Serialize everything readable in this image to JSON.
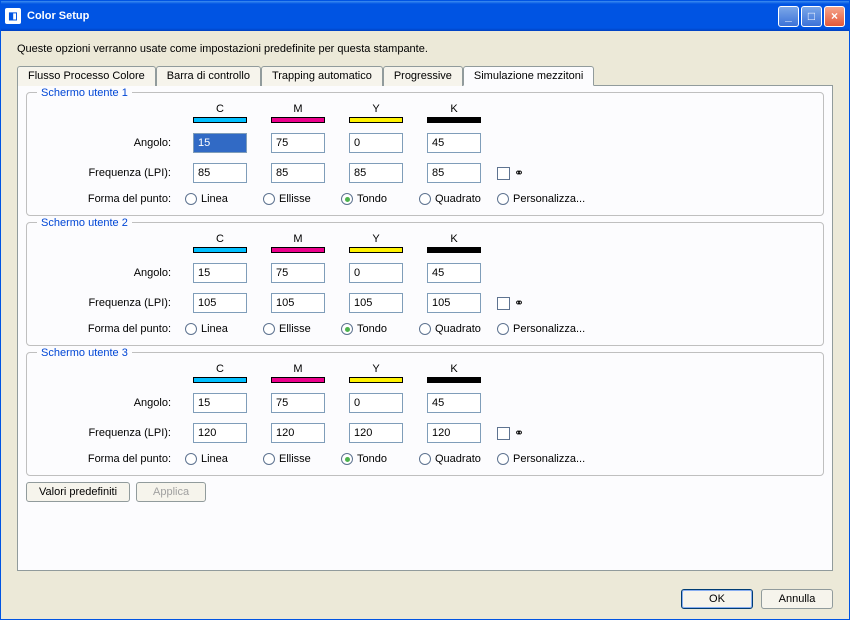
{
  "window": {
    "title": "Color Setup"
  },
  "subtitle": "Queste opzioni verranno usate come impostazioni predefinite per questa stampante.",
  "tabs": {
    "t0": "Flusso Processo Colore",
    "t1": "Barra di controllo",
    "t2": "Trapping automatico",
    "t3": "Progressive",
    "t4": "Simulazione mezzitoni"
  },
  "labels": {
    "c": "C",
    "m": "M",
    "y": "Y",
    "k": "K",
    "angolo": "Angolo:",
    "frequenza": "Frequenza (LPI):",
    "forma": "Forma del punto:",
    "linea": "Linea",
    "ellisse": "Ellisse",
    "tondo": "Tondo",
    "quadrato": "Quadrato",
    "personalizza": "Personalizza...",
    "defaults": "Valori predefiniti",
    "applica": "Applica",
    "ok": "OK",
    "annulla": "Annulla",
    "linkicon": "⚭"
  },
  "groups": {
    "g1": {
      "title": "Schermo utente 1",
      "ang_c": "15",
      "ang_m": "75",
      "ang_y": "0",
      "ang_k": "45",
      "freq_c": "85",
      "freq_m": "85",
      "freq_y": "85",
      "freq_k": "85",
      "shape": "tondo",
      "ang_c_highlight": true
    },
    "g2": {
      "title": "Schermo utente 2",
      "ang_c": "15",
      "ang_m": "75",
      "ang_y": "0",
      "ang_k": "45",
      "freq_c": "105",
      "freq_m": "105",
      "freq_y": "105",
      "freq_k": "105",
      "shape": "tondo"
    },
    "g3": {
      "title": "Schermo utente 3",
      "ang_c": "15",
      "ang_m": "75",
      "ang_y": "0",
      "ang_k": "45",
      "freq_c": "120",
      "freq_m": "120",
      "freq_y": "120",
      "freq_k": "120",
      "shape": "tondo"
    }
  }
}
